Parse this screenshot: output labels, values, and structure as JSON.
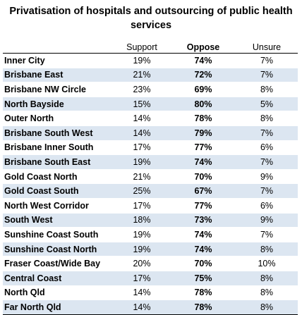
{
  "title": {
    "line1": "Privatisation of hospitals and outsourcing of public health",
    "line2": "services"
  },
  "columns": [
    "",
    "Support",
    "Oppose",
    "Unsure"
  ],
  "rows": [
    {
      "region": "Inner City",
      "support": "19%",
      "oppose": "74%",
      "unsure": "7%"
    },
    {
      "region": "Brisbane East",
      "support": "21%",
      "oppose": "72%",
      "unsure": "7%"
    },
    {
      "region": "Brisbane NW Circle",
      "support": "23%",
      "oppose": "69%",
      "unsure": "8%"
    },
    {
      "region": "North Bayside",
      "support": "15%",
      "oppose": "80%",
      "unsure": "5%"
    },
    {
      "region": "Outer North",
      "support": "14%",
      "oppose": "78%",
      "unsure": "8%"
    },
    {
      "region": "Brisbane South West",
      "support": "14%",
      "oppose": "79%",
      "unsure": "7%"
    },
    {
      "region": "Brisbane Inner South",
      "support": "17%",
      "oppose": "77%",
      "unsure": "6%"
    },
    {
      "region": "Brisbane South East",
      "support": "19%",
      "oppose": "74%",
      "unsure": "7%"
    },
    {
      "region": "Gold Coast North",
      "support": "21%",
      "oppose": "70%",
      "unsure": "9%"
    },
    {
      "region": "Gold Coast South",
      "support": "25%",
      "oppose": "67%",
      "unsure": "7%"
    },
    {
      "region": "North West Corridor",
      "support": "17%",
      "oppose": "77%",
      "unsure": "6%"
    },
    {
      "region": "South West",
      "support": "18%",
      "oppose": "73%",
      "unsure": "9%"
    },
    {
      "region": "Sunshine Coast South",
      "support": "19%",
      "oppose": "74%",
      "unsure": "7%"
    },
    {
      "region": "Sunshine Coast North",
      "support": "19%",
      "oppose": "74%",
      "unsure": "8%"
    },
    {
      "region": "Fraser Coast/Wide Bay",
      "support": "20%",
      "oppose": "70%",
      "unsure": "10%"
    },
    {
      "region": "Central Coast",
      "support": "17%",
      "oppose": "75%",
      "unsure": "8%"
    },
    {
      "region": "North Qld",
      "support": "14%",
      "oppose": "78%",
      "unsure": "8%"
    },
    {
      "region": "Far North Qld",
      "support": "14%",
      "oppose": "78%",
      "unsure": "8%"
    }
  ],
  "colors": {
    "band": "#dce6f1",
    "text": "#000000"
  }
}
